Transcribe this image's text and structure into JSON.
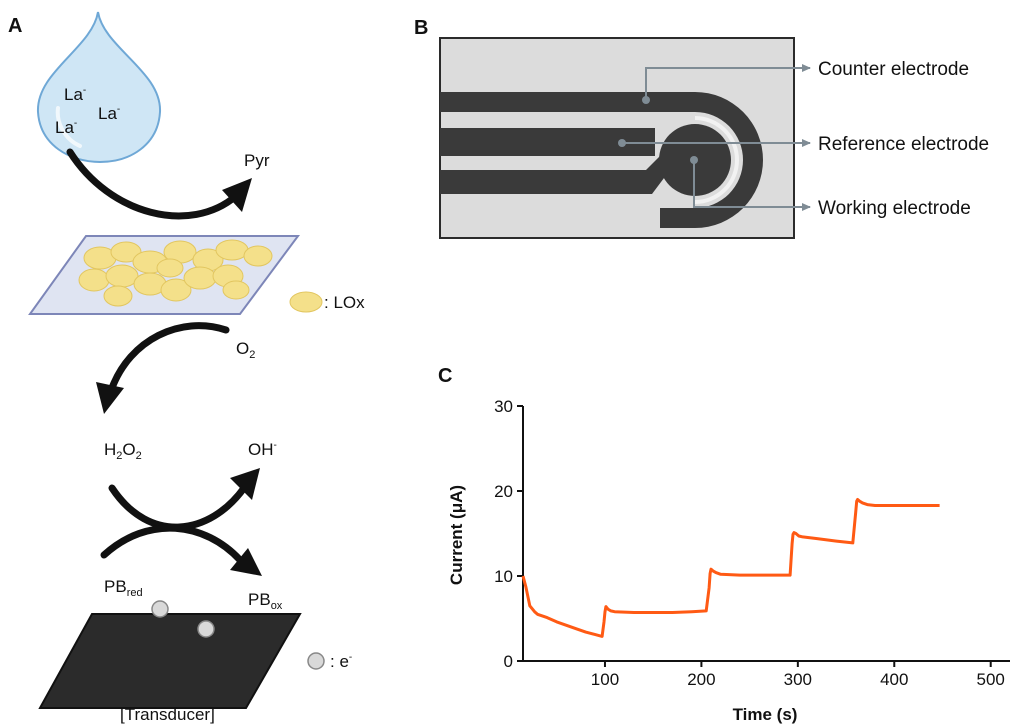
{
  "panels": {
    "a": "A",
    "b": "B",
    "c": "C"
  },
  "panel_a": {
    "lactate_1": "La",
    "lactate_2": "La",
    "lactate_3": "La",
    "charge_minus": "-",
    "pyruvate": "Pyr",
    "lox_legend": ": LOx",
    "o2_base": "O",
    "o2_sub": "2",
    "h2o2_h": "H",
    "h2o2_sub1": "2",
    "h2o2_o": "O",
    "h2o2_sub2": "2",
    "oh": "OH",
    "oh_charge": "-",
    "pb_red_base": "PB",
    "pb_red_sub": "red",
    "pb_ox_base": "PB",
    "pb_ox_sub": "ox",
    "electron_legend": ": e",
    "electron_charge": "-",
    "transducer": "[Transducer]"
  },
  "panel_b": {
    "counter": "Counter electrode",
    "reference": "Reference electrode",
    "working": "Working electrode"
  },
  "colors": {
    "drop_fill": "#cfe6f5",
    "drop_stroke": "#6fa8d6",
    "enzyme": "#f4e08a",
    "enzyme_stroke": "#e2c660",
    "layer_fill": "#dfe4f2",
    "layer_stroke": "#7d86b8",
    "electrode_dark": "#3a3a3a",
    "board_fill": "#dcdcdc",
    "pointer": "#7f8c95",
    "trace": "#ff5a14"
  },
  "chart_data": {
    "type": "line",
    "xlabel": "Time (s)",
    "ylabel": "Current (μA)",
    "xlim": [
      15,
      520
    ],
    "ylim": [
      0,
      30
    ],
    "xticks": [
      100,
      200,
      300,
      400,
      500
    ],
    "yticks": [
      0,
      10,
      20,
      30
    ],
    "grid": false,
    "series": [
      {
        "x": [
          15,
          18,
          22,
          27,
          30,
          40,
          50,
          60,
          70,
          80,
          90,
          97,
          99,
          100,
          101,
          103,
          106,
          110,
          130,
          150,
          170,
          190,
          205,
          208,
          209,
          210,
          212,
          215,
          220,
          240,
          260,
          280,
          292,
          294,
          295,
          296,
          298,
          301,
          305,
          320,
          340,
          357,
          360,
          361,
          362,
          364,
          367,
          372,
          380,
          400,
          420,
          447
        ],
        "y": [
          10,
          8.7,
          6.5,
          5.8,
          5.5,
          5.1,
          4.6,
          4.2,
          3.8,
          3.4,
          3.1,
          2.9,
          4.6,
          5.8,
          6.4,
          6.1,
          5.9,
          5.8,
          5.7,
          5.7,
          5.7,
          5.8,
          5.9,
          8.6,
          10.3,
          10.8,
          10.6,
          10.4,
          10.2,
          10.1,
          10.1,
          10.1,
          10.1,
          13.8,
          14.9,
          15.1,
          15.0,
          14.7,
          14.6,
          14.4,
          14.1,
          13.9,
          17.5,
          18.8,
          19.0,
          18.8,
          18.6,
          18.4,
          18.3,
          18.3,
          18.3,
          18.3
        ]
      }
    ]
  }
}
